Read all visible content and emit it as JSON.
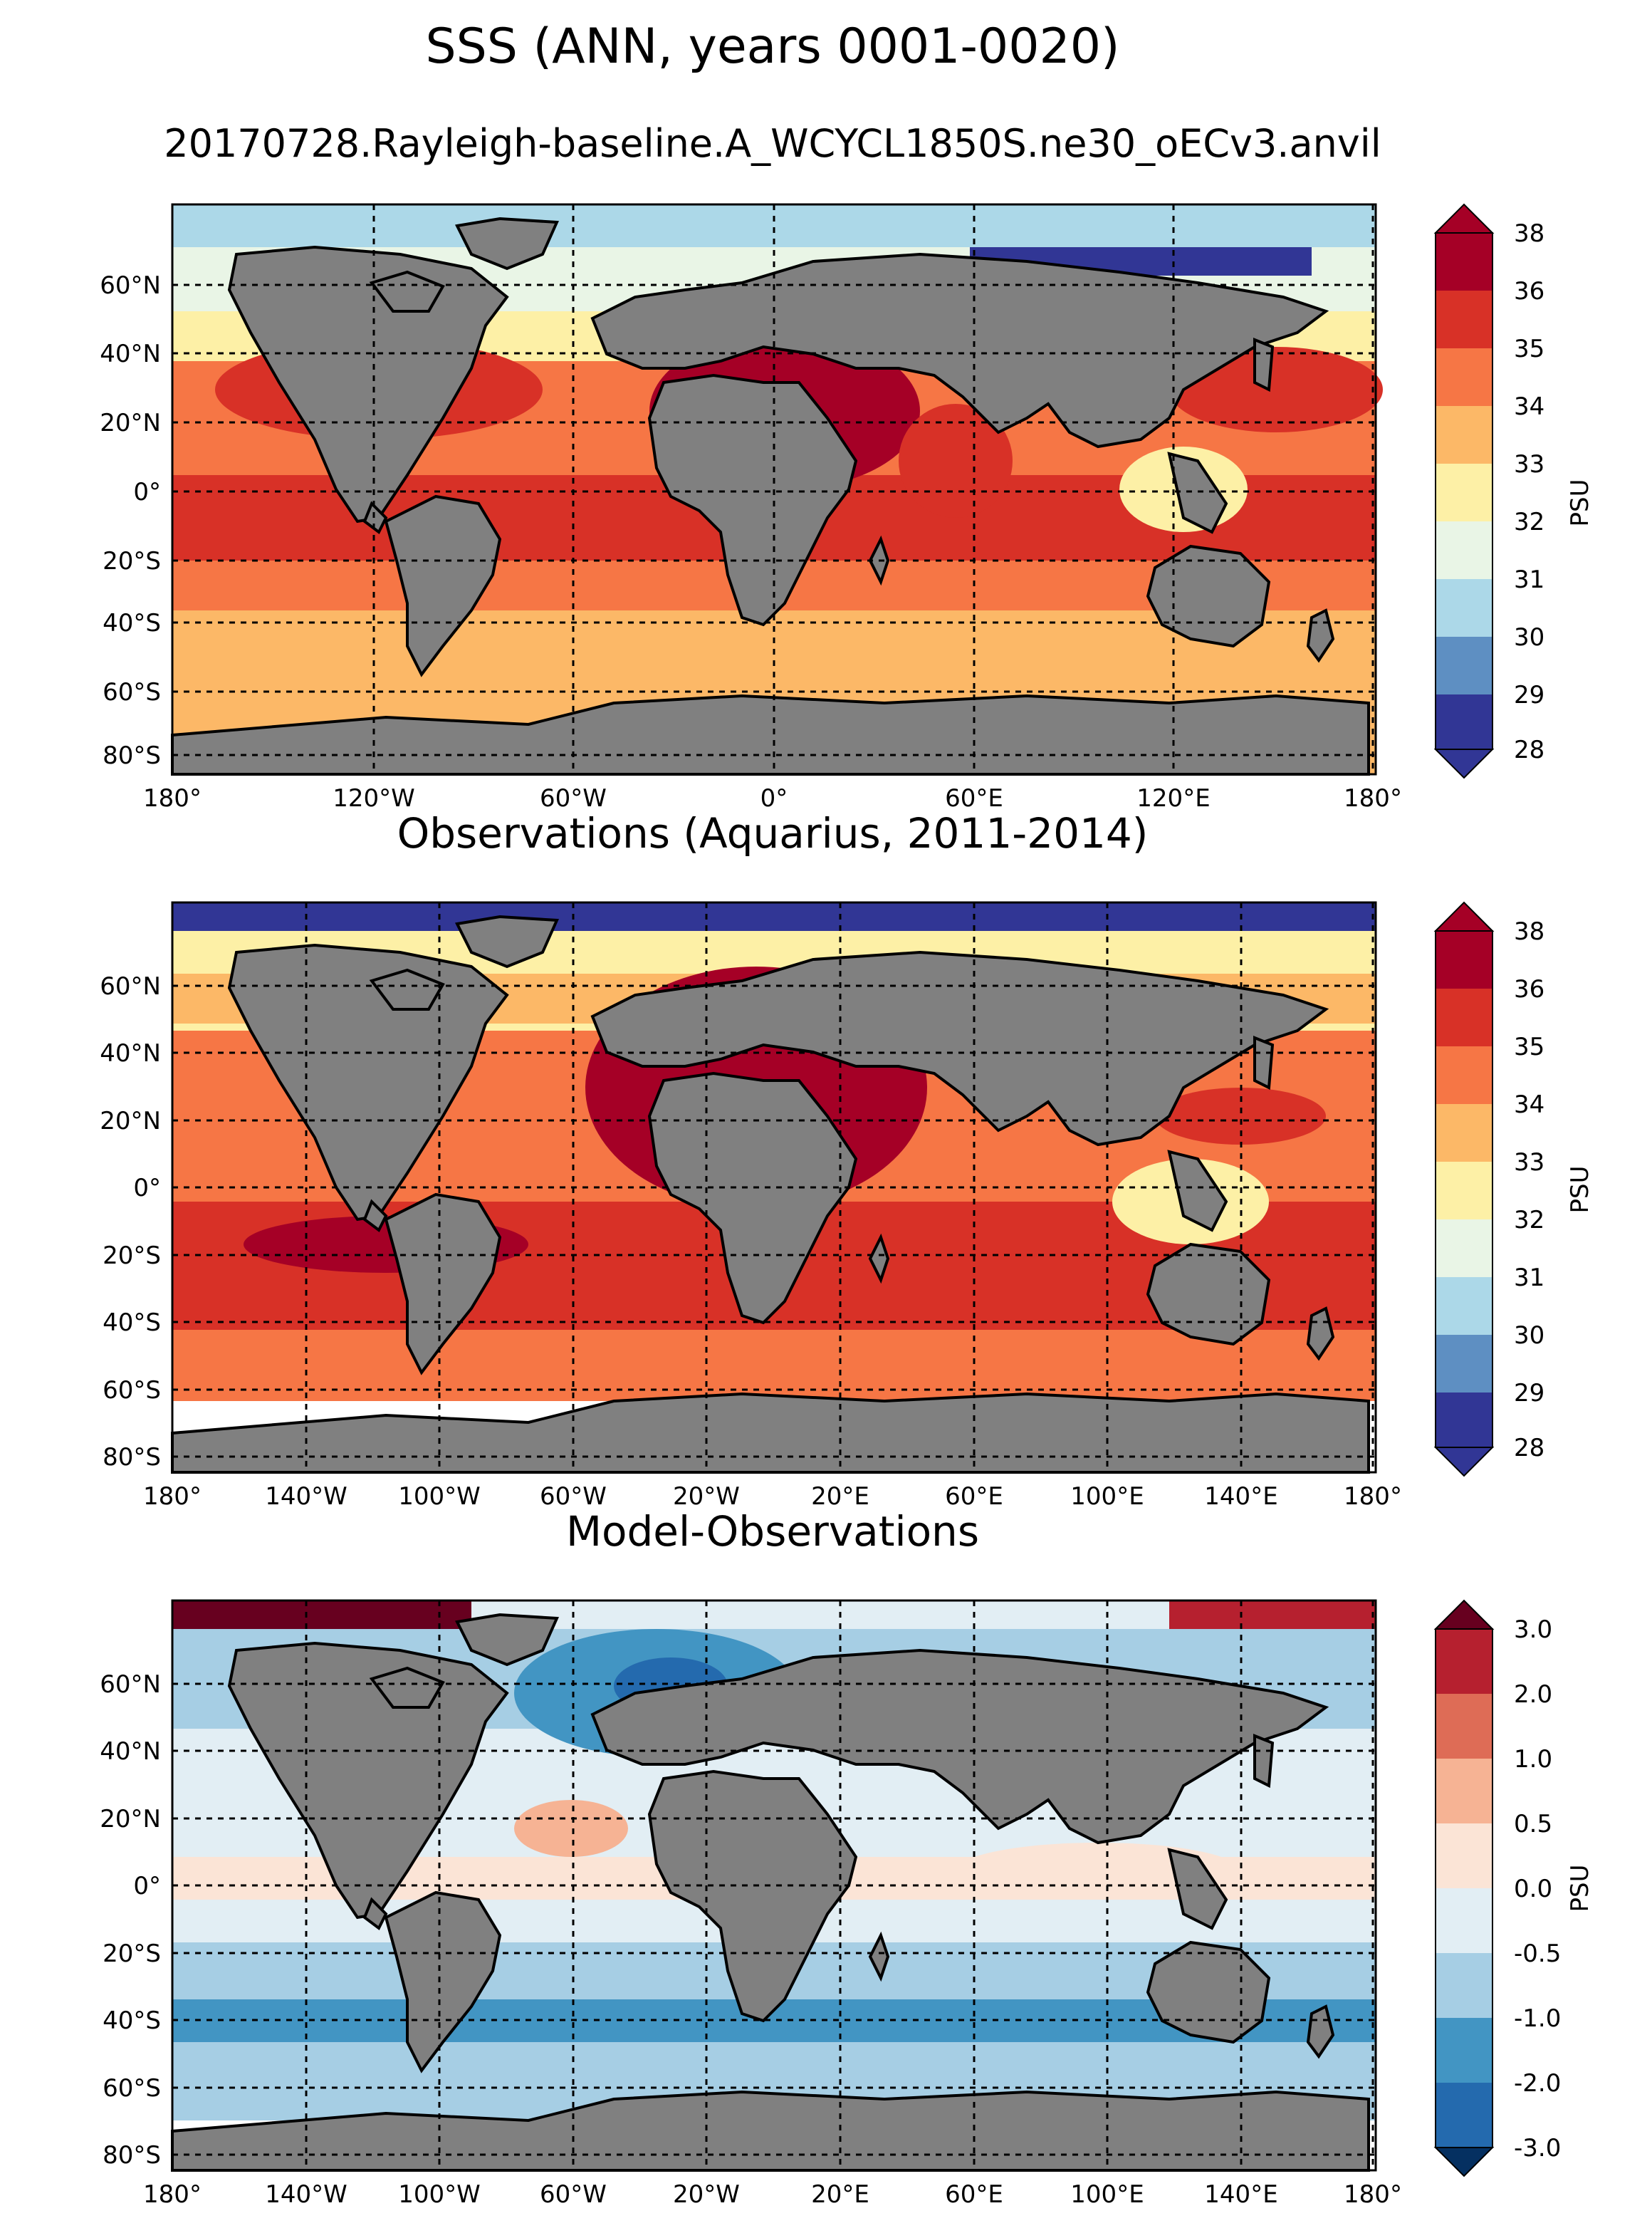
{
  "figure": {
    "title": "SSS (ANN, years 0001-0020)",
    "subtitle": "20170728.Rayleigh-baseline.A_WCYCL1850S.ne30_oECv3.anvil"
  },
  "colors": {
    "land": "#808080",
    "sss_levels": [
      "#313695",
      "#5e8fc2",
      "#acd8e8",
      "#e9f5e6",
      "#fdf0a6",
      "#fcb867",
      "#f67645",
      "#d83127",
      "#a50026"
    ],
    "diff_levels": [
      "#053061",
      "#246aae",
      "#4295c3",
      "#a6cee4",
      "#e2eef4",
      "#fbe4d6",
      "#f6b394",
      "#de6c56",
      "#b6202f",
      "#67001f"
    ]
  },
  "chart_data": [
    {
      "type": "heatmap",
      "title": "",
      "map_data": "model sea surface salinity, annual mean",
      "lat_ticks": [
        "60°N",
        "40°N",
        "20°N",
        "0°",
        "20°S",
        "40°S",
        "60°S",
        "80°S"
      ],
      "lon_ticks": [
        "180°",
        "120°W",
        "60°W",
        "0°",
        "60°E",
        "120°E",
        "180°"
      ],
      "colorbar": {
        "label": "PSU",
        "ticks": [
          "28",
          "29",
          "30",
          "31",
          "32",
          "33",
          "34",
          "35",
          "36",
          "38"
        ],
        "extend": "both"
      }
    },
    {
      "type": "heatmap",
      "title": "Observations (Aquarius, 2011-2014)",
      "lat_ticks": [
        "60°N",
        "40°N",
        "20°N",
        "0°",
        "20°S",
        "40°S",
        "60°S",
        "80°S"
      ],
      "lon_ticks": [
        "180°",
        "140°W",
        "100°W",
        "60°W",
        "20°W",
        "20°E",
        "60°E",
        "100°E",
        "140°E",
        "180°"
      ],
      "colorbar": {
        "label": "PSU",
        "ticks": [
          "28",
          "29",
          "30",
          "31",
          "32",
          "33",
          "34",
          "35",
          "36",
          "38"
        ],
        "extend": "both"
      }
    },
    {
      "type": "heatmap",
      "title": "Model-Observations",
      "lat_ticks": [
        "60°N",
        "40°N",
        "20°N",
        "0°",
        "20°S",
        "40°S",
        "60°S",
        "80°S"
      ],
      "lon_ticks": [
        "180°",
        "140°W",
        "100°W",
        "60°W",
        "20°W",
        "20°E",
        "60°E",
        "100°E",
        "140°E",
        "180°"
      ],
      "colorbar": {
        "label": "PSU",
        "ticks": [
          "-3.0",
          "-2.0",
          "-1.0",
          "-0.5",
          "0.0",
          "0.5",
          "1.0",
          "2.0",
          "3.0"
        ],
        "extend": "both"
      }
    }
  ]
}
